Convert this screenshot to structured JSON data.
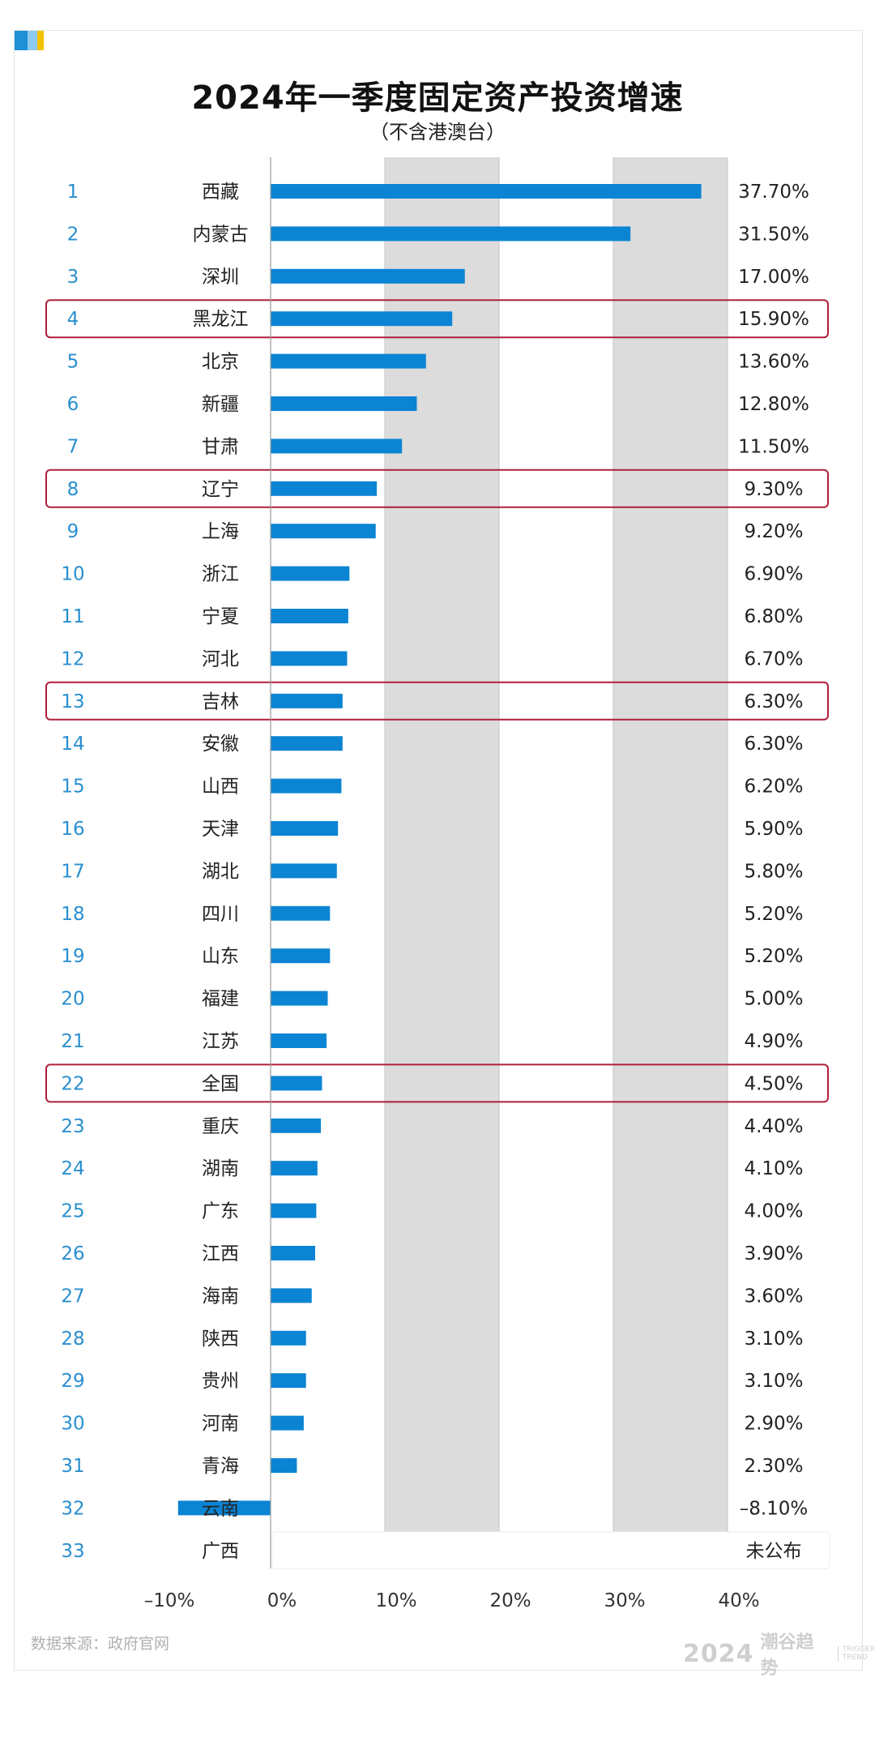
{
  "header": {
    "title": "2024年一季度固定资产投资增速",
    "subtitle": "（不含港澳台）"
  },
  "footer": {
    "source": "数据来源：政府官网",
    "brand_year": "2024",
    "brand_name": "潮谷趋势",
    "brand_en_1": "TRIGGER",
    "brand_en_2": "TREND"
  },
  "colors": {
    "bar": "#0b84d4",
    "band": "#dcdcdc",
    "rank": "#2a8fd0",
    "highlight_border": "#b01e3a"
  },
  "chart_data": {
    "type": "bar",
    "orientation": "horizontal",
    "title": "2024年一季度固定资产投资增速",
    "subtitle": "（不含港澳台）",
    "xlabel": "",
    "ylabel": "",
    "xlim": [
      -0.1,
      0.4
    ],
    "x_ticks": [
      "–10%",
      "0%",
      "10%",
      "20%",
      "30%",
      "40%"
    ],
    "x_tick_values": [
      -0.1,
      0.0,
      0.1,
      0.2,
      0.3,
      0.4
    ],
    "shaded_bands": [
      [
        0.1,
        0.2
      ],
      [
        0.3,
        0.4
      ]
    ],
    "rows": [
      {
        "rank": "1",
        "name": "西藏",
        "value": 0.377,
        "label": "37.70%"
      },
      {
        "rank": "2",
        "name": "内蒙古",
        "value": 0.315,
        "label": "31.50%"
      },
      {
        "rank": "3",
        "name": "深圳",
        "value": 0.17,
        "label": "17.00%"
      },
      {
        "rank": "4",
        "name": "黑龙江",
        "value": 0.159,
        "label": "15.90%",
        "highlight": true
      },
      {
        "rank": "5",
        "name": "北京",
        "value": 0.136,
        "label": "13.60%"
      },
      {
        "rank": "6",
        "name": "新疆",
        "value": 0.128,
        "label": "12.80%"
      },
      {
        "rank": "7",
        "name": "甘肃",
        "value": 0.115,
        "label": "11.50%"
      },
      {
        "rank": "8",
        "name": "辽宁",
        "value": 0.093,
        "label": "9.30%",
        "highlight": true
      },
      {
        "rank": "9",
        "name": "上海",
        "value": 0.092,
        "label": "9.20%"
      },
      {
        "rank": "10",
        "name": "浙江",
        "value": 0.069,
        "label": "6.90%"
      },
      {
        "rank": "11",
        "name": "宁夏",
        "value": 0.068,
        "label": "6.80%"
      },
      {
        "rank": "12",
        "name": "河北",
        "value": 0.067,
        "label": "6.70%"
      },
      {
        "rank": "13",
        "name": "吉林",
        "value": 0.063,
        "label": "6.30%",
        "highlight": true
      },
      {
        "rank": "14",
        "name": "安徽",
        "value": 0.063,
        "label": "6.30%"
      },
      {
        "rank": "15",
        "name": "山西",
        "value": 0.062,
        "label": "6.20%"
      },
      {
        "rank": "16",
        "name": "天津",
        "value": 0.059,
        "label": "5.90%"
      },
      {
        "rank": "17",
        "name": "湖北",
        "value": 0.058,
        "label": "5.80%"
      },
      {
        "rank": "18",
        "name": "四川",
        "value": 0.052,
        "label": "5.20%"
      },
      {
        "rank": "19",
        "name": "山东",
        "value": 0.052,
        "label": "5.20%"
      },
      {
        "rank": "20",
        "name": "福建",
        "value": 0.05,
        "label": "5.00%"
      },
      {
        "rank": "21",
        "name": "江苏",
        "value": 0.049,
        "label": "4.90%"
      },
      {
        "rank": "22",
        "name": "全国",
        "value": 0.045,
        "label": "4.50%",
        "highlight": true
      },
      {
        "rank": "23",
        "name": "重庆",
        "value": 0.044,
        "label": "4.40%"
      },
      {
        "rank": "24",
        "name": "湖南",
        "value": 0.041,
        "label": "4.10%"
      },
      {
        "rank": "25",
        "name": "广东",
        "value": 0.04,
        "label": "4.00%"
      },
      {
        "rank": "26",
        "name": "江西",
        "value": 0.039,
        "label": "3.90%"
      },
      {
        "rank": "27",
        "name": "海南",
        "value": 0.036,
        "label": "3.60%"
      },
      {
        "rank": "28",
        "name": "陕西",
        "value": 0.031,
        "label": "3.10%"
      },
      {
        "rank": "29",
        "name": "贵州",
        "value": 0.031,
        "label": "3.10%"
      },
      {
        "rank": "30",
        "name": "河南",
        "value": 0.029,
        "label": "2.90%"
      },
      {
        "rank": "31",
        "name": "青海",
        "value": 0.023,
        "label": "2.30%"
      },
      {
        "rank": "32",
        "name": "云南",
        "value": -0.081,
        "label": "–8.10%"
      },
      {
        "rank": "33",
        "name": "广西",
        "value": null,
        "label": "未公布"
      }
    ]
  }
}
